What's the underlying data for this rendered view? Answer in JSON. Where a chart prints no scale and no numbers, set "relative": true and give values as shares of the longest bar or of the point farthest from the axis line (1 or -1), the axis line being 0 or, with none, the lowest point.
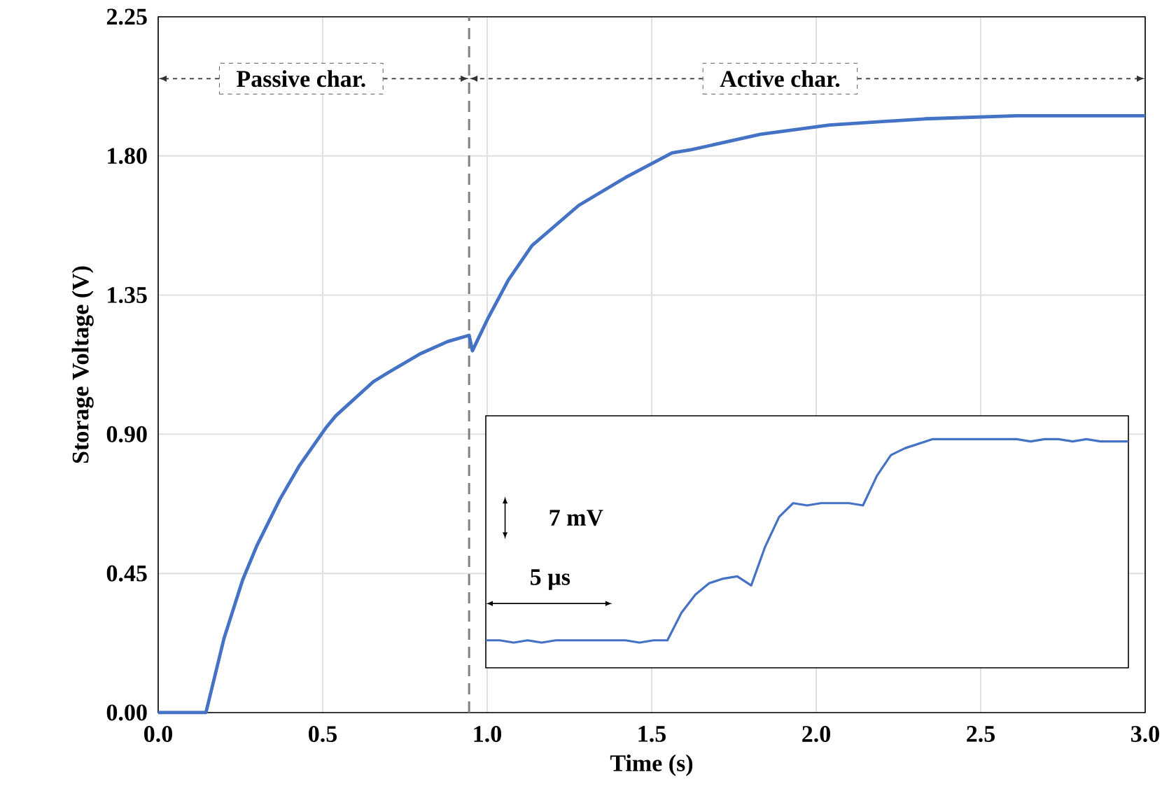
{
  "chart_data": [
    {
      "type": "line",
      "xlabel": "Time (s)",
      "ylabel": "Storage Voltage (V)",
      "xlim": [
        0,
        3
      ],
      "ylim": [
        0,
        2.25
      ],
      "xticks": [
        {
          "value": 0,
          "label": "0.0"
        },
        {
          "value": 0.5,
          "label": "0.5"
        },
        {
          "value": 1,
          "label": "1.0"
        },
        {
          "value": 1.5,
          "label": "1.5"
        },
        {
          "value": 2,
          "label": "2.0"
        },
        {
          "value": 2.5,
          "label": "2.5"
        },
        {
          "value": 3,
          "label": "3.0"
        }
      ],
      "yticks": [
        {
          "value": 0,
          "label": "0.00"
        },
        {
          "value": 0.45,
          "label": "0.45"
        },
        {
          "value": 0.9,
          "label": "0.90"
        },
        {
          "value": 1.35,
          "label": "1.35"
        },
        {
          "value": 1.8,
          "label": "1.80"
        },
        {
          "value": 2.25,
          "label": "2.25"
        }
      ],
      "grid": true,
      "series": [
        {
          "color": "#4472c4",
          "x": [
            0,
            0.05,
            0.1,
            0.145,
            0.2,
            0.257,
            0.3,
            0.37,
            0.43,
            0.509,
            0.54,
            0.654,
            0.7,
            0.796,
            0.88,
            0.945,
            0.955,
            1.0,
            1.065,
            1.136,
            1.278,
            1.42,
            1.562,
            1.62,
            1.83,
            2.04,
            2.33,
            2.61,
            3.0
          ],
          "values": [
            0,
            0,
            0,
            0,
            0.24,
            0.43,
            0.54,
            0.69,
            0.8,
            0.92,
            0.96,
            1.07,
            1.1,
            1.16,
            1.2,
            1.22,
            1.17,
            1.27,
            1.4,
            1.51,
            1.64,
            1.73,
            1.81,
            1.82,
            1.87,
            1.9,
            1.92,
            1.93,
            1.93
          ]
        }
      ],
      "ref_lines": [
        {
          "axis": "x",
          "value": 0.945,
          "color": "#808080",
          "line_style": "dashed"
        }
      ],
      "annotations": [
        {
          "text": "Passive char.",
          "x": 0.945,
          "y": 2.05
        },
        {
          "text": "Active char.",
          "x": 0.945,
          "y": 2.05
        }
      ]
    },
    {
      "type": "line",
      "relative": true,
      "categories": [
        null,
        null,
        null,
        null,
        null,
        null,
        null,
        null,
        null,
        null,
        null,
        null,
        null,
        null,
        null,
        null,
        null,
        null,
        null,
        null,
        null,
        null,
        null,
        null,
        null,
        null,
        null,
        null,
        null,
        null,
        null,
        null,
        null,
        null,
        null,
        null,
        null,
        null,
        null,
        null,
        null,
        null,
        null,
        null,
        null,
        null,
        null
      ],
      "series": [
        {
          "color": "#4472c4",
          "values": [
            0.12,
            0.12,
            0.11,
            0.12,
            0.11,
            0.12,
            0.12,
            0.12,
            0.12,
            0.12,
            0.12,
            0.11,
            0.12,
            0.12,
            0.24,
            0.32,
            0.37,
            0.39,
            0.4,
            0.36,
            0.53,
            0.66,
            0.72,
            0.71,
            0.72,
            0.72,
            0.72,
            0.71,
            0.84,
            0.93,
            0.96,
            0.98,
            1,
            1.0,
            1.0,
            1.0,
            1.0,
            1.0,
            1.0,
            0.99,
            1.0,
            1.0,
            0.99,
            1.0,
            0.99,
            0.99,
            0.99
          ]
        }
      ],
      "annotations": [
        "7 mV",
        "5 µs"
      ]
    }
  ]
}
